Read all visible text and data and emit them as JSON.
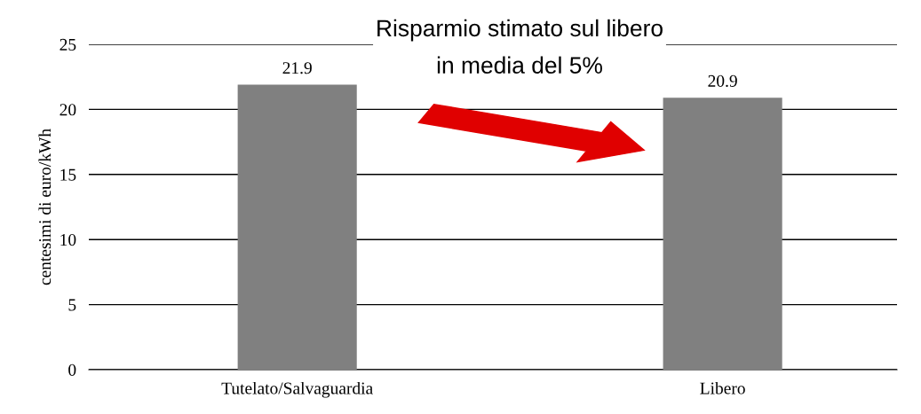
{
  "chart_data": {
    "type": "bar",
    "title": "Risparmio stimato sul libero\nin media del 5%",
    "ylabel": "centesimi di euro/kWh",
    "categories": [
      "Tutelato/Salvaguardia",
      "Libero"
    ],
    "values": [
      21.9,
      20.9
    ],
    "color": "#808080",
    "ylim": [
      0,
      25
    ],
    "yticks": [
      0,
      5,
      10,
      15,
      20,
      25
    ],
    "grid": "y",
    "data_labels": true,
    "legend": false
  }
}
